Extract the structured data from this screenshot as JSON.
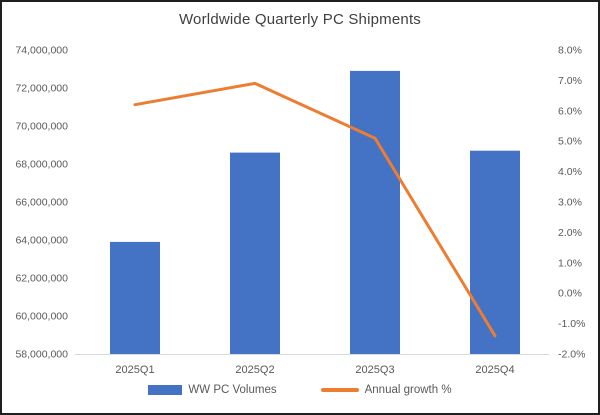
{
  "title": "Worldwide Quarterly PC Shipments",
  "chart_data": {
    "type": "bar",
    "subtype": "combo-bar-line",
    "categories": [
      "2025Q1",
      "2025Q2",
      "2025Q3",
      "2025Q4"
    ],
    "series": [
      {
        "name": "WW PC Volumes",
        "chart": "bar",
        "axis": "left",
        "color": "#4472C4",
        "values": [
          63900000,
          68600000,
          72900000,
          68700000
        ]
      },
      {
        "name": "Annual growth %",
        "chart": "line",
        "axis": "right",
        "color": "#ED7D31",
        "values": [
          6.2,
          6.9,
          5.1,
          -1.4
        ]
      }
    ],
    "left_axis": {
      "min": 58000000,
      "max": 74000000,
      "step": 2000000,
      "tick_labels": [
        "74,000,000",
        "72,000,000",
        "70,000,000",
        "68,000,000",
        "66,000,000",
        "64,000,000",
        "62,000,000",
        "60,000,000",
        "58,000,000"
      ]
    },
    "right_axis": {
      "min": -2.0,
      "max": 8.0,
      "step": 1.0,
      "tick_labels": [
        "8.0%",
        "7.0%",
        "6.0%",
        "5.0%",
        "4.0%",
        "3.0%",
        "2.0%",
        "1.0%",
        "0.0%",
        "-1.0%",
        "-2.0%"
      ]
    },
    "grid": false,
    "legend_position": "bottom",
    "axis_line_color": "#d9d9d9",
    "tick_text_color": "#595959",
    "title_color": "#3f3f3f"
  }
}
